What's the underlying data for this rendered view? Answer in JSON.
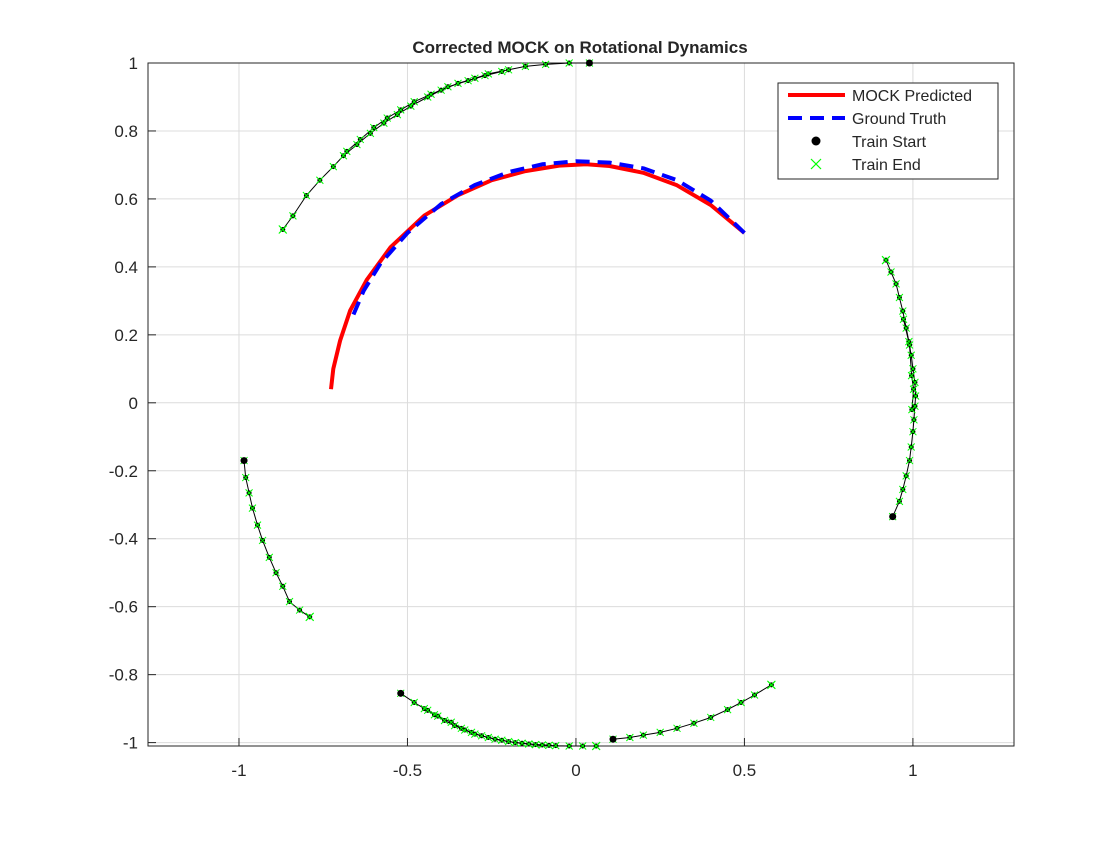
{
  "chart_data": {
    "type": "line",
    "title": "Corrected MOCK on Rotational Dynamics",
    "xlabel": "",
    "ylabel": "",
    "xlim": [
      -1.27,
      1.3
    ],
    "ylim": [
      -1.01,
      1.0
    ],
    "xticks": [
      -1,
      -0.5,
      0,
      0.5,
      1
    ],
    "xtick_labels": [
      "-1",
      "-0.5",
      "0",
      "0.5",
      "1"
    ],
    "yticks": [
      -1,
      -0.8,
      -0.6,
      -0.4,
      -0.2,
      0,
      0.2,
      0.4,
      0.6,
      0.8,
      1
    ],
    "ytick_labels": [
      "-1",
      "-0.8",
      "-0.6",
      "-0.4",
      "-0.2",
      "0",
      "0.2",
      "0.4",
      "0.6",
      "0.8",
      "1"
    ],
    "grid": true,
    "legend_position": "top-right",
    "legend": [
      {
        "label": "MOCK Predicted",
        "style": "solid-line",
        "color": "#ff0000"
      },
      {
        "label": "Ground Truth",
        "style": "dashed-line",
        "color": "#0000ff"
      },
      {
        "label": "Train Start",
        "style": "dot",
        "color": "#000000"
      },
      {
        "label": "Train End",
        "style": "x",
        "color": "#00ff00"
      }
    ],
    "series": [
      {
        "name": "MOCK Predicted",
        "color": "#ff0000",
        "points": [
          [
            0.5,
            0.5
          ],
          [
            0.4,
            0.582
          ],
          [
            0.3,
            0.64
          ],
          [
            0.2,
            0.677
          ],
          [
            0.1,
            0.697
          ],
          [
            0.03,
            0.702
          ],
          [
            -0.05,
            0.698
          ],
          [
            -0.15,
            0.682
          ],
          [
            -0.25,
            0.655
          ],
          [
            -0.35,
            0.611
          ],
          [
            -0.45,
            0.551
          ],
          [
            -0.55,
            0.458
          ],
          [
            -0.62,
            0.363
          ],
          [
            -0.67,
            0.272
          ],
          [
            -0.7,
            0.183
          ],
          [
            -0.72,
            0.1
          ],
          [
            -0.727,
            0.04
          ]
        ]
      },
      {
        "name": "Ground Truth",
        "color": "#0000ff",
        "points": [
          [
            0.5,
            0.5
          ],
          [
            0.4,
            0.595
          ],
          [
            0.3,
            0.655
          ],
          [
            0.2,
            0.69
          ],
          [
            0.1,
            0.707
          ],
          [
            0.0,
            0.711
          ],
          [
            -0.1,
            0.702
          ],
          [
            -0.2,
            0.679
          ],
          [
            -0.3,
            0.641
          ],
          [
            -0.4,
            0.585
          ],
          [
            -0.5,
            0.5
          ],
          [
            -0.58,
            0.41
          ],
          [
            -0.63,
            0.33
          ],
          [
            -0.66,
            0.26
          ]
        ]
      }
    ],
    "trajectories": [
      {
        "start": [
          0.04,
          1.0
        ],
        "end": [
          -0.87,
          0.51
        ],
        "points": [
          [
            0.04,
            1.0
          ],
          [
            -0.02,
            1.0
          ],
          [
            -0.09,
            0.996
          ],
          [
            -0.15,
            0.99
          ],
          [
            -0.2,
            0.98
          ],
          [
            -0.26,
            0.968
          ],
          [
            -0.3,
            0.955
          ],
          [
            -0.35,
            0.94
          ],
          [
            -0.4,
            0.92
          ],
          [
            -0.44,
            0.9
          ],
          [
            -0.49,
            0.873
          ],
          [
            -0.53,
            0.848
          ],
          [
            -0.57,
            0.823
          ],
          [
            -0.61,
            0.793
          ],
          [
            -0.65,
            0.76
          ],
          [
            -0.69,
            0.727
          ],
          [
            -0.72,
            0.695
          ],
          [
            -0.76,
            0.655
          ],
          [
            -0.8,
            0.61
          ],
          [
            -0.84,
            0.55
          ],
          [
            -0.87,
            0.51
          ]
        ],
        "upper_points": [
          [
            -0.22,
            0.975
          ],
          [
            -0.27,
            0.963
          ],
          [
            -0.32,
            0.948
          ],
          [
            -0.38,
            0.93
          ],
          [
            -0.43,
            0.908
          ],
          [
            -0.48,
            0.886
          ],
          [
            -0.52,
            0.862
          ],
          [
            -0.56,
            0.838
          ],
          [
            -0.6,
            0.81
          ],
          [
            -0.64,
            0.775
          ],
          [
            -0.68,
            0.74
          ]
        ]
      },
      {
        "start": [
          0.94,
          -0.335
        ],
        "end": [
          0.92,
          0.42
        ],
        "points": [
          [
            0.94,
            -0.335
          ],
          [
            0.96,
            -0.29
          ],
          [
            0.97,
            -0.255
          ],
          [
            0.98,
            -0.215
          ],
          [
            0.99,
            -0.17
          ],
          [
            0.995,
            -0.13
          ],
          [
            1.0,
            -0.085
          ],
          [
            1.003,
            -0.05
          ],
          [
            1.006,
            -0.01
          ],
          [
            1.008,
            0.02
          ],
          [
            1.006,
            0.06
          ],
          [
            1.0,
            0.1
          ],
          [
            0.995,
            0.14
          ],
          [
            0.988,
            0.18
          ],
          [
            0.98,
            0.22
          ],
          [
            0.97,
            0.27
          ],
          [
            0.96,
            0.31
          ],
          [
            0.95,
            0.35
          ],
          [
            0.935,
            0.385
          ],
          [
            0.92,
            0.42
          ]
        ],
        "upper_points": [
          [
            0.997,
            -0.02
          ],
          [
            1.002,
            0.04
          ],
          [
            0.996,
            0.08
          ],
          [
            0.99,
            0.17
          ],
          [
            0.972,
            0.246
          ]
        ]
      },
      {
        "start": [
          -0.985,
          -0.17
        ],
        "end": [
          -0.79,
          -0.63
        ],
        "points": [
          [
            -0.985,
            -0.17
          ],
          [
            -0.98,
            -0.22
          ],
          [
            -0.97,
            -0.265
          ],
          [
            -0.96,
            -0.31
          ],
          [
            -0.945,
            -0.36
          ],
          [
            -0.93,
            -0.405
          ],
          [
            -0.91,
            -0.455
          ],
          [
            -0.89,
            -0.5
          ],
          [
            -0.87,
            -0.54
          ],
          [
            -0.85,
            -0.585
          ],
          [
            -0.82,
            -0.61
          ],
          [
            -0.79,
            -0.63
          ]
        ],
        "upper_points": []
      },
      {
        "start": [
          -0.52,
          -0.855
        ],
        "end": [
          0.06,
          -1.01
        ],
        "points": [
          [
            -0.52,
            -0.855
          ],
          [
            -0.48,
            -0.882
          ],
          [
            -0.45,
            -0.9
          ],
          [
            -0.42,
            -0.918
          ],
          [
            -0.39,
            -0.935
          ],
          [
            -0.36,
            -0.95
          ],
          [
            -0.33,
            -0.963
          ],
          [
            -0.3,
            -0.975
          ],
          [
            -0.26,
            -0.985
          ],
          [
            -0.22,
            -0.993
          ],
          [
            -0.18,
            -1.0
          ],
          [
            -0.14,
            -1.004
          ],
          [
            -0.1,
            -1.007
          ],
          [
            -0.06,
            -1.009
          ],
          [
            -0.02,
            -1.01
          ],
          [
            0.02,
            -1.01
          ],
          [
            0.06,
            -1.01
          ]
        ],
        "upper_points": [
          [
            -0.44,
            -0.905
          ],
          [
            -0.41,
            -0.922
          ],
          [
            -0.37,
            -0.94
          ],
          [
            -0.34,
            -0.958
          ],
          [
            -0.31,
            -0.97
          ],
          [
            -0.28,
            -0.98
          ],
          [
            -0.24,
            -0.99
          ],
          [
            -0.2,
            -0.997
          ],
          [
            -0.16,
            -1.002
          ],
          [
            -0.12,
            -1.006
          ],
          [
            -0.08,
            -1.008
          ]
        ]
      },
      {
        "start": [
          0.11,
          -0.99
        ],
        "end": [
          0.58,
          -0.83
        ],
        "points": [
          [
            0.11,
            -0.99
          ],
          [
            0.16,
            -0.985
          ],
          [
            0.2,
            -0.978
          ],
          [
            0.25,
            -0.97
          ],
          [
            0.3,
            -0.958
          ],
          [
            0.35,
            -0.943
          ],
          [
            0.4,
            -0.926
          ],
          [
            0.45,
            -0.903
          ],
          [
            0.49,
            -0.882
          ],
          [
            0.53,
            -0.86
          ],
          [
            0.58,
            -0.83
          ]
        ],
        "upper_points": []
      }
    ]
  }
}
